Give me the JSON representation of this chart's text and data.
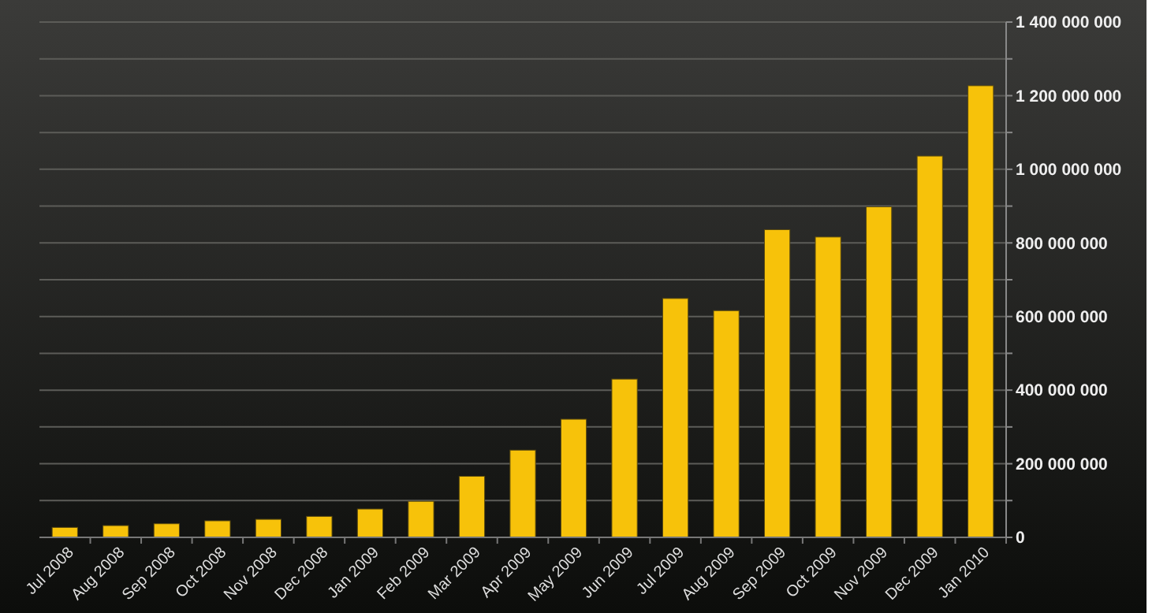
{
  "chart_data": {
    "type": "bar",
    "categories": [
      "Jul 2008",
      "Aug 2008",
      "Sep 2008",
      "Oct 2008",
      "Nov 2008",
      "Dec 2008",
      "Jan 2009",
      "Feb 2009",
      "Mar 2009",
      "Apr 2009",
      "May 2009",
      "Jun 2009",
      "Jul 2009",
      "Aug 2009",
      "Sep 2009",
      "Oct 2009",
      "Nov 2009",
      "Dec 2009",
      "Jan 2010"
    ],
    "values": [
      27000000,
      32000000,
      37000000,
      45000000,
      49000000,
      57000000,
      77000000,
      98000000,
      166000000,
      237000000,
      321000000,
      430000000,
      649000000,
      616000000,
      836000000,
      816000000,
      898000000,
      1036000000,
      1227000000
    ],
    "color": "#f7c20a",
    "ylim": [
      0,
      1400000000
    ],
    "yticks": [
      {
        "value": 0,
        "label": "0"
      },
      {
        "value": 100000000,
        "label": null
      },
      {
        "value": 200000000,
        "label": "200 000 000"
      },
      {
        "value": 300000000,
        "label": null
      },
      {
        "value": 400000000,
        "label": "400 000 000"
      },
      {
        "value": 500000000,
        "label": null
      },
      {
        "value": 600000000,
        "label": "600 000 000"
      },
      {
        "value": 700000000,
        "label": null
      },
      {
        "value": 800000000,
        "label": "800 000 000"
      },
      {
        "value": 900000000,
        "label": null
      },
      {
        "value": 1000000000,
        "label": "1 000 000 000"
      },
      {
        "value": 1100000000,
        "label": null
      },
      {
        "value": 1200000000,
        "label": "1 200 000 000"
      },
      {
        "value": 1300000000,
        "label": null
      },
      {
        "value": 1400000000,
        "label": "1 400 000 000"
      }
    ],
    "grid": "y"
  }
}
